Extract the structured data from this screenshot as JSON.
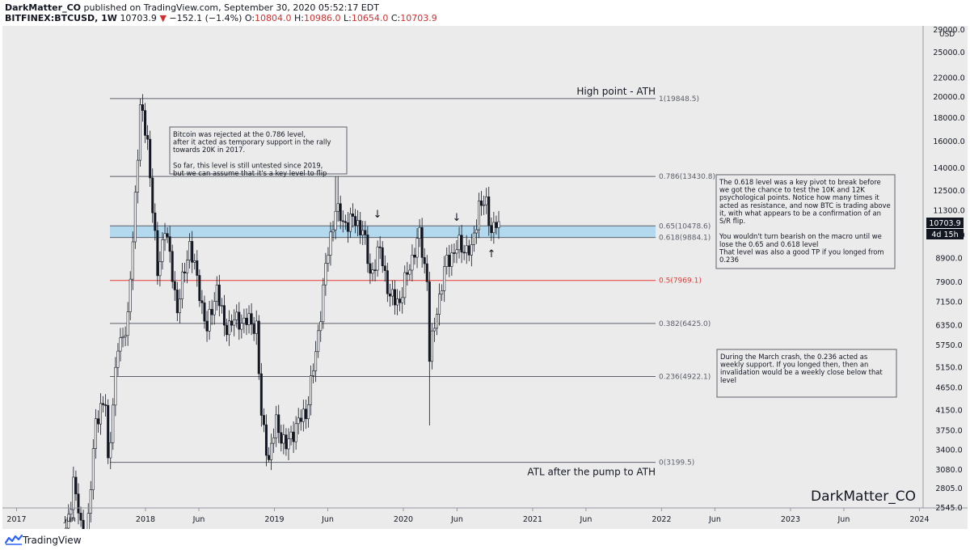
{
  "header": {
    "publisher": "DarkMatter_CO",
    "published_text": "published on TradingView.com, September 30, 2020 05:52:17 EDT",
    "symbol": "BITFINEX:BTCUSD, 1W",
    "last_price": "10703.9",
    "change": "−152.1 (−1.4%)",
    "o_label": "O:",
    "o_value": "10804.0",
    "h_label": "H:",
    "h_value": "10986.0",
    "l_label": "L:",
    "l_value": "10654.0",
    "c_label": "C:",
    "c_value": "10703.9"
  },
  "footer": {
    "brand": "TradingView"
  },
  "colors": {
    "background": "#ebebeb",
    "candle_up": "#ffffff",
    "candle_down": "#131722",
    "fib_line": "#5d606b",
    "fib_half": "#e53935",
    "zone_fill": "#a9d6f0",
    "price_badge": "#131722"
  },
  "chart_data": {
    "type": "candlestick",
    "title": "",
    "watermark": "DarkMatter_CO",
    "y_scale": "log",
    "ylim": [
      2545,
      29000
    ],
    "currency_label": "USD",
    "x_ticks": [
      "2017",
      "Jun",
      "2018",
      "Jun",
      "2019",
      "Jun",
      "2020",
      "Jun",
      "2021",
      "Jun",
      "2022",
      "Jun",
      "2023",
      "Jun",
      "2024"
    ],
    "y_ticks": [
      "29000.0",
      "25000.0",
      "22000.0",
      "20000.0",
      "18000.0",
      "16000.0",
      "14000.0",
      "12500.0",
      "11300.0",
      "10000.0",
      "8900.0",
      "7900.0",
      "7150.0",
      "6350.0",
      "5750.0",
      "5150.0",
      "4650.0",
      "4150.0",
      "3750.0",
      "3400.0",
      "3080.0",
      "2805.0",
      "2545.0"
    ],
    "current_price": "10703.9",
    "countdown": "4d 15h",
    "fib_levels": [
      {
        "label": "1(19848.5)",
        "value": 19848.5
      },
      {
        "label": "0.786(13430.8)",
        "value": 13430.8
      },
      {
        "label": "0.65(10478.6)",
        "value": 10478.6
      },
      {
        "label": "0.618(9884.1)",
        "value": 9884.1
      },
      {
        "label": "0.5(7969.1)",
        "value": 7969.1
      },
      {
        "label": "0.382(6425.0)",
        "value": 6425.0
      },
      {
        "label": "0.236(4922.1)",
        "value": 4922.1
      },
      {
        "label": "0(3199.5)",
        "value": 3199.5
      }
    ],
    "level_labels": {
      "high": "High point - ATH",
      "low": "ATL after the pump to ATH"
    },
    "arrows": [
      "↓",
      "↓",
      "↑"
    ],
    "notes": {
      "note1": [
        "Bitcoin was rejected at the 0.786 level,",
        "after it acted as temporary support in the rally",
        "towards 20K in 2017.",
        "",
        "So far, this level is still untested since 2019,",
        "but we can assume that it's a key level to flip"
      ],
      "note2": [
        "The 0.618 level was a key pivot to break before",
        "we got the chance to test the 10K and 12K",
        "psychological points. Notice how many times it",
        "acted as resistance, and now BTC is trading above",
        "it, with what appears to be a confirmation of an",
        "S/R flip.",
        "",
        "You wouldn't turn bearish on the macro until we",
        "lose the 0.65 and 0.618 level",
        "That level was also a good TP if you longed from",
        "0.236"
      ],
      "note3": [
        "During the March crash, the 0.236 acted as",
        "weekly support. If you longed then, then an",
        "invalidation would be a weekly close below that",
        "level"
      ]
    },
    "anchors": [
      {
        "date": "2017-04-02",
        "price": 2700
      },
      {
        "date": "2017-05-07",
        "price": 1900
      },
      {
        "date": "2017-06-11",
        "price": 2900
      },
      {
        "date": "2017-07-16",
        "price": 2000
      },
      {
        "date": "2017-08-13",
        "price": 4000
      },
      {
        "date": "2017-09-10",
        "price": 4300
      },
      {
        "date": "2017-09-17",
        "price": 3200
      },
      {
        "date": "2017-10-15",
        "price": 5700
      },
      {
        "date": "2017-11-12",
        "price": 6500
      },
      {
        "date": "2017-11-26",
        "price": 9800
      },
      {
        "date": "2017-12-17",
        "price": 19000
      },
      {
        "date": "2018-01-07",
        "price": 16000
      },
      {
        "date": "2018-01-21",
        "price": 11500
      },
      {
        "date": "2018-02-04",
        "price": 8200
      },
      {
        "date": "2018-02-25",
        "price": 10500
      },
      {
        "date": "2018-03-18",
        "price": 8200
      },
      {
        "date": "2018-04-01",
        "price": 6900
      },
      {
        "date": "2018-05-06",
        "price": 9600
      },
      {
        "date": "2018-06-03",
        "price": 7500
      },
      {
        "date": "2018-06-24",
        "price": 6200
      },
      {
        "date": "2018-07-22",
        "price": 7700
      },
      {
        "date": "2018-08-12",
        "price": 6300
      },
      {
        "date": "2018-09-09",
        "price": 6500
      },
      {
        "date": "2018-10-14",
        "price": 6500
      },
      {
        "date": "2018-11-11",
        "price": 6350
      },
      {
        "date": "2018-11-25",
        "price": 4000
      },
      {
        "date": "2018-12-16",
        "price": 3250
      },
      {
        "date": "2019-01-06",
        "price": 3900
      },
      {
        "date": "2019-02-03",
        "price": 3450
      },
      {
        "date": "2019-03-03",
        "price": 3850
      },
      {
        "date": "2019-03-31",
        "price": 4100
      },
      {
        "date": "2019-04-28",
        "price": 5500
      },
      {
        "date": "2019-05-26",
        "price": 8500
      },
      {
        "date": "2019-06-23",
        "price": 11500
      },
      {
        "date": "2019-07-14",
        "price": 10600
      },
      {
        "date": "2019-08-11",
        "price": 10800
      },
      {
        "date": "2019-09-08",
        "price": 10300
      },
      {
        "date": "2019-09-29",
        "price": 8200
      },
      {
        "date": "2019-10-27",
        "price": 9300
      },
      {
        "date": "2019-11-24",
        "price": 7300
      },
      {
        "date": "2019-12-22",
        "price": 7200
      },
      {
        "date": "2020-01-19",
        "price": 8600
      },
      {
        "date": "2020-02-16",
        "price": 10000
      },
      {
        "date": "2020-03-08",
        "price": 8000
      },
      {
        "date": "2020-03-15",
        "price": 5400
      },
      {
        "date": "2020-04-05",
        "price": 6900
      },
      {
        "date": "2020-05-03",
        "price": 8800
      },
      {
        "date": "2020-06-07",
        "price": 9500
      },
      {
        "date": "2020-07-12",
        "price": 9200
      },
      {
        "date": "2020-08-02",
        "price": 11700
      },
      {
        "date": "2020-08-23",
        "price": 11600
      },
      {
        "date": "2020-09-06",
        "price": 10300
      },
      {
        "date": "2020-09-27",
        "price": 10703.9
      }
    ]
  }
}
